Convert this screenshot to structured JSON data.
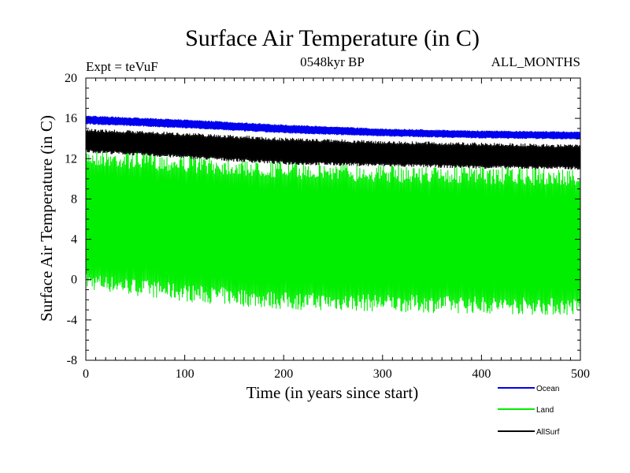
{
  "chart_data": {
    "type": "line",
    "title": "Surface Air Temperature (in C)",
    "subtitle_left": "Expt = teVuF",
    "subtitle_center": "0548kyr BP",
    "subtitle_right": "ALL_MONTHS",
    "xlabel": "Time (in years since start)",
    "ylabel": "Surface Air Temperature (in C)",
    "xlim": [
      0,
      500
    ],
    "ylim": [
      -8,
      20
    ],
    "xticks": [
      0,
      100,
      200,
      300,
      400,
      500
    ],
    "yticks": [
      -8,
      -4,
      0,
      4,
      8,
      12,
      16,
      20
    ],
    "legend_position": "bottom-right",
    "series": [
      {
        "name": "Land",
        "color": "#00ee00",
        "x": [
          0,
          100,
          200,
          300,
          400,
          500
        ],
        "upper": [
          13.0,
          12.4,
          11.8,
          11.4,
          11.2,
          11.0
        ],
        "lower": [
          -1.0,
          -2.2,
          -3.0,
          -3.2,
          -3.4,
          -3.6
        ]
      },
      {
        "name": "AllSurf",
        "color": "#000000",
        "x": [
          0,
          100,
          200,
          300,
          400,
          500
        ],
        "upper": [
          15.0,
          14.6,
          14.1,
          13.8,
          13.6,
          13.4
        ],
        "lower": [
          12.6,
          12.0,
          11.4,
          11.2,
          11.0,
          10.9
        ]
      },
      {
        "name": "Ocean",
        "color": "#0000ee",
        "x": [
          0,
          100,
          200,
          300,
          400,
          500
        ],
        "upper": [
          16.3,
          15.9,
          15.4,
          15.0,
          14.8,
          14.7
        ],
        "lower": [
          15.4,
          15.0,
          14.5,
          14.2,
          14.0,
          13.9
        ]
      }
    ],
    "legend": [
      "Ocean",
      "Land",
      "AllSurf"
    ]
  }
}
